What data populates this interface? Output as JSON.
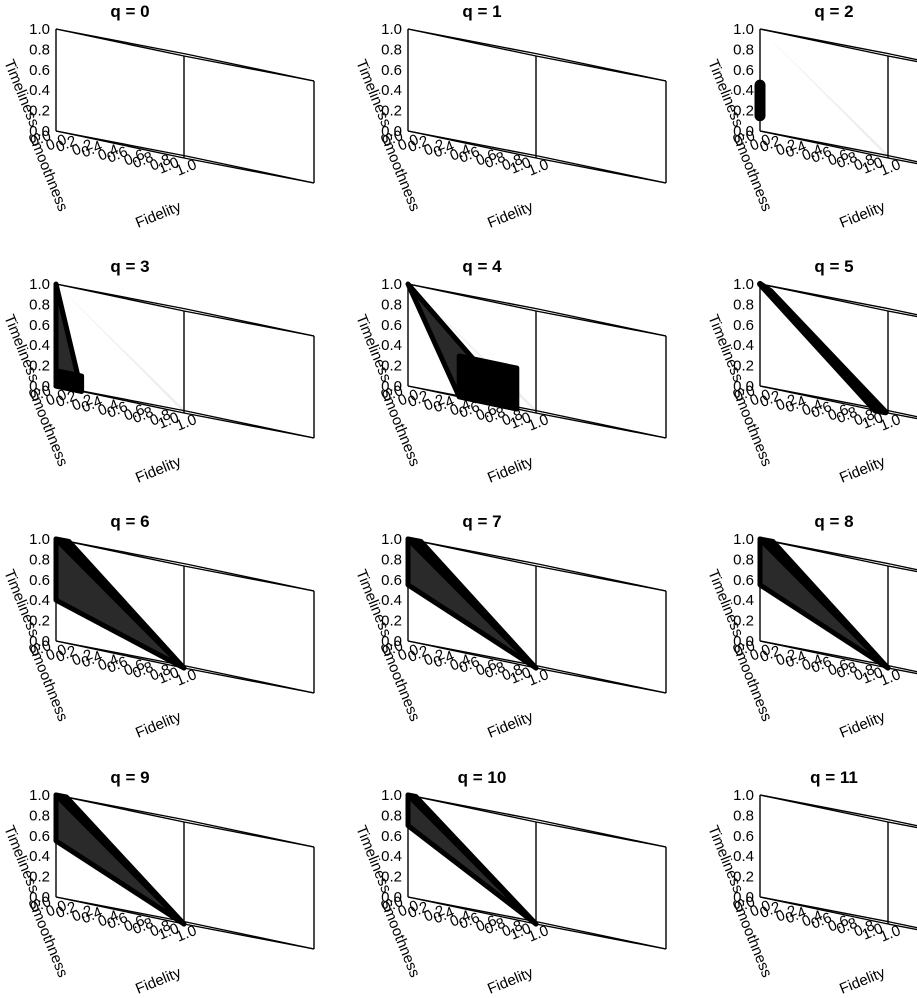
{
  "figure": {
    "background": "#ffffff",
    "frame_color": "#000000",
    "floor_fill": "#eeeeee",
    "region_fill_dark": "#000000",
    "region_fill_shade": "#2a2a2a"
  },
  "chart_data": {
    "type": "3d-region-grid",
    "panels": [
      {
        "title": "q = 0",
        "regions": []
      },
      {
        "title": "q = 1",
        "regions": []
      },
      {
        "title": "q = 2",
        "regions": [
          {
            "kind": "tube",
            "points": [
              [
                0.0,
                0.0,
                0.15
              ],
              [
                0.0,
                0.0,
                0.45
              ]
            ]
          }
        ]
      },
      {
        "title": "q = 3",
        "regions": [
          {
            "kind": "triangle",
            "vertices": [
              [
                0.0,
                0.0,
                1.0
              ],
              [
                0.0,
                0.0,
                0.0
              ],
              [
                0.0,
                0.2,
                0.0
              ]
            ]
          },
          {
            "kind": "quad",
            "vertices": [
              [
                0.0,
                0.0,
                0.0
              ],
              [
                0.0,
                0.2,
                0.0
              ],
              [
                0.0,
                0.2,
                0.15
              ],
              [
                0.0,
                0.0,
                0.15
              ]
            ]
          }
        ]
      },
      {
        "title": "q = 4",
        "regions": [
          {
            "kind": "triangle",
            "vertices": [
              [
                0.0,
                0.0,
                1.0
              ],
              [
                0.0,
                0.4,
                0.0
              ],
              [
                0.0,
                0.85,
                0.0
              ]
            ]
          },
          {
            "kind": "quad",
            "vertices": [
              [
                0.0,
                0.4,
                0.0
              ],
              [
                0.0,
                0.85,
                0.0
              ],
              [
                0.0,
                0.85,
                0.4
              ],
              [
                0.0,
                0.4,
                0.4
              ]
            ]
          }
        ]
      },
      {
        "title": "q = 5",
        "regions": [
          {
            "kind": "strip",
            "vertices": [
              [
                0.0,
                0.0,
                1.0
              ],
              [
                0.08,
                0.0,
                0.95
              ],
              [
                0.0,
                0.9,
                0.0
              ],
              [
                0.08,
                0.9,
                0.0
              ]
            ]
          }
        ]
      },
      {
        "title": "q = 6",
        "regions": [
          {
            "kind": "triangle",
            "vertices": [
              [
                0.0,
                0.0,
                1.0
              ],
              [
                0.0,
                1.0,
                0.0
              ],
              [
                0.0,
                0.0,
                0.4
              ]
            ]
          },
          {
            "kind": "triangle",
            "vertices": [
              [
                0.0,
                0.0,
                1.0
              ],
              [
                0.0,
                1.0,
                0.0
              ],
              [
                0.1,
                0.0,
                1.0
              ]
            ]
          }
        ]
      },
      {
        "title": "q = 7",
        "regions": [
          {
            "kind": "triangle",
            "vertices": [
              [
                0.0,
                0.0,
                1.0
              ],
              [
                0.0,
                1.0,
                0.0
              ],
              [
                0.0,
                0.0,
                0.55
              ]
            ]
          },
          {
            "kind": "triangle",
            "vertices": [
              [
                0.0,
                0.0,
                1.0
              ],
              [
                0.0,
                1.0,
                0.0
              ],
              [
                0.1,
                0.0,
                1.0
              ]
            ]
          }
        ]
      },
      {
        "title": "q = 8",
        "regions": [
          {
            "kind": "triangle",
            "vertices": [
              [
                0.0,
                0.0,
                1.0
              ],
              [
                0.0,
                1.0,
                0.0
              ],
              [
                0.0,
                0.0,
                0.55
              ]
            ]
          },
          {
            "kind": "triangle",
            "vertices": [
              [
                0.0,
                0.0,
                1.0
              ],
              [
                0.0,
                1.0,
                0.0
              ],
              [
                0.1,
                0.0,
                1.0
              ]
            ]
          }
        ]
      },
      {
        "title": "q = 9",
        "regions": [
          {
            "kind": "triangle",
            "vertices": [
              [
                0.0,
                0.0,
                1.0
              ],
              [
                0.0,
                1.0,
                0.0
              ],
              [
                0.0,
                0.0,
                0.55
              ]
            ]
          },
          {
            "kind": "triangle",
            "vertices": [
              [
                0.0,
                0.0,
                1.0
              ],
              [
                0.0,
                1.0,
                0.0
              ],
              [
                0.08,
                0.0,
                1.0
              ]
            ]
          }
        ]
      },
      {
        "title": "q = 10",
        "regions": [
          {
            "kind": "triangle",
            "vertices": [
              [
                0.0,
                0.0,
                1.0
              ],
              [
                0.0,
                1.0,
                0.0
              ],
              [
                0.0,
                0.0,
                0.7
              ]
            ]
          },
          {
            "kind": "triangle",
            "vertices": [
              [
                0.0,
                0.0,
                1.0
              ],
              [
                0.0,
                1.0,
                0.0
              ],
              [
                0.06,
                0.0,
                1.0
              ]
            ]
          }
        ]
      },
      {
        "title": "q = 11",
        "regions": []
      }
    ],
    "axes": {
      "x_label": "Fidelity",
      "y_label": "Smoothness",
      "z_label": "Timeliness",
      "x_ticks": [
        "0.0",
        "0.2",
        "0.4",
        "0.6",
        "0.8",
        "1.0"
      ],
      "y_ticks": [
        "0.0",
        "0.2",
        "0.4",
        "0.6",
        "0.8",
        "1.0"
      ],
      "z_ticks": [
        "0.0",
        "0.2",
        "0.4",
        "0.6",
        "0.8",
        "1.0"
      ],
      "range": [
        0,
        1
      ]
    },
    "floor_triangle_from_panel": 2,
    "grid": false
  }
}
